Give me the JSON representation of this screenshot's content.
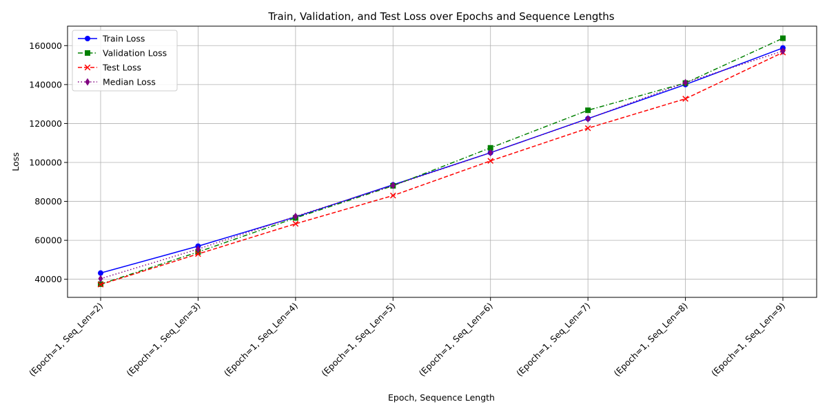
{
  "chart_data": {
    "type": "line",
    "title": "Train, Validation, and Test Loss over Epochs and Sequence Lengths",
    "xlabel": "Epoch, Sequence Length",
    "ylabel": "Loss",
    "categories": [
      "(Epoch=1, Seq_Len=2)",
      "(Epoch=1, Seq_Len=3)",
      "(Epoch=1, Seq_Len=4)",
      "(Epoch=1, Seq_Len=5)",
      "(Epoch=1, Seq_Len=6)",
      "(Epoch=1, Seq_Len=7)",
      "(Epoch=1, Seq_Len=8)",
      "(Epoch=1, Seq_Len=9)"
    ],
    "ylim": [
      30700,
      170000
    ],
    "yticks": [
      40000,
      60000,
      80000,
      100000,
      120000,
      140000,
      160000
    ],
    "grid": true,
    "legend_position": "upper-left",
    "series": [
      {
        "name": "Train Loss",
        "color": "#0000ff",
        "dash": "solid",
        "marker": "circle",
        "values": [
          43200,
          57000,
          72000,
          88500,
          105000,
          122500,
          140000,
          158800
        ]
      },
      {
        "name": "Validation Loss",
        "color": "#008000",
        "dash": "dashdot",
        "marker": "square",
        "values": [
          37500,
          54000,
          71500,
          88000,
          107500,
          126800,
          140800,
          163800
        ]
      },
      {
        "name": "Test Loss",
        "color": "#ff0000",
        "dash": "dashed",
        "marker": "x",
        "values": [
          37300,
          53000,
          68500,
          83000,
          100800,
          117600,
          132700,
          156500
        ]
      },
      {
        "name": "Median Loss",
        "color": "#800080",
        "dash": "dotted",
        "marker": "diamond",
        "values": [
          40300,
          55500,
          72300,
          88200,
          105000,
          122400,
          141000,
          157200
        ]
      }
    ]
  }
}
